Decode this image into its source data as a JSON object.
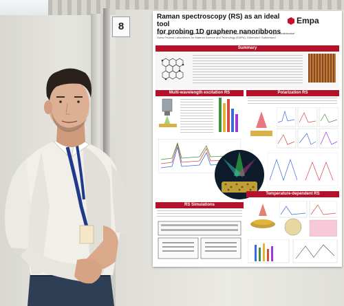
{
  "booth_label": "8",
  "poster": {
    "title_line1": "Raman spectroscopy (RS) as an ideal tool",
    "title_line2": "for probing 1D graphene nanoribbons",
    "authors": "Angel Labordet Alvarez, Michael Renn, Roman Fasel, Michel Calame, Gabriela Borin Barin, Mirjana Dimitrievska*",
    "affiliation": "Swiss Federal Laboratories for Material Science and Technology (EMPA), Dübendorf, Switzerland",
    "logo": "Empa",
    "sections": {
      "summary": "Summary",
      "multi": "Multi-wavelength excitation RS",
      "polarization": "Polarization RS",
      "simulations": "RS Simulations",
      "temperature": "Temperature-dependent RS"
    }
  },
  "colors": {
    "accent": "#b3122a",
    "shirt": "#f1efea",
    "lanyard": "#1f3a8a",
    "trousers": "#2d3e55"
  }
}
